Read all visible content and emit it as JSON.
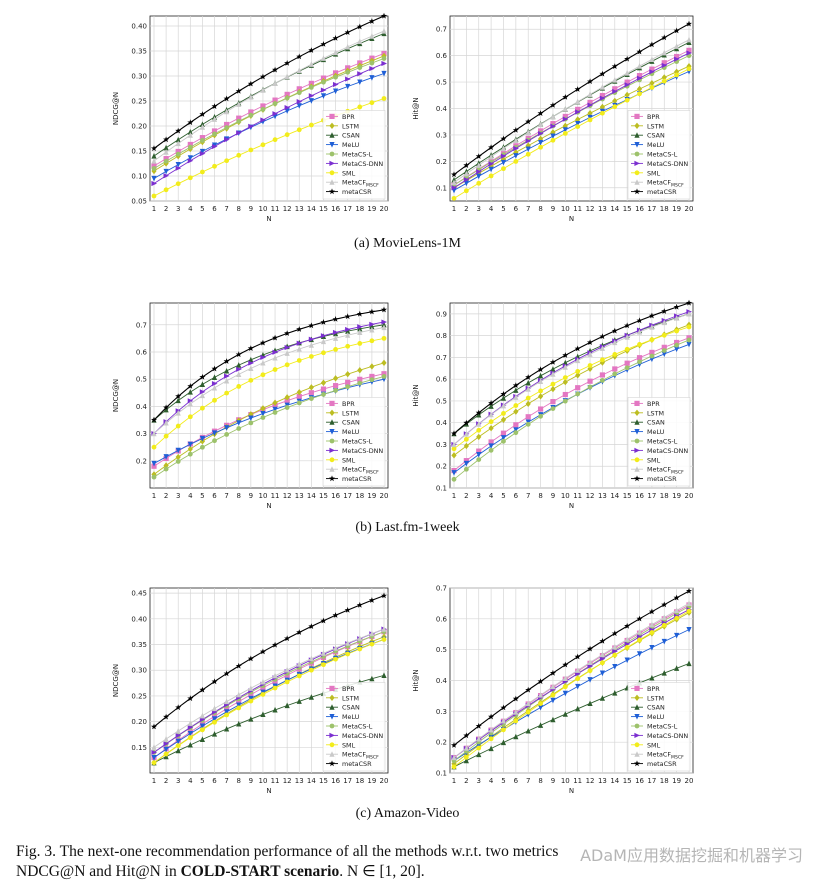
{
  "legend": [
    "BPR",
    "LSTM",
    "CSAN",
    "MeLU",
    "MetaCS-L",
    "MetaCS-DNN",
    "SML",
    "MetaCF_MSCF",
    "metaCSR"
  ],
  "legend_text": {
    "metacf_base": "MetaCF",
    "metacf_sub": "MSCF"
  },
  "colors": [
    "#e377c2",
    "#bcbd22",
    "#2e5e2e",
    "#1f5fd6",
    "#9dc26b",
    "#7b2fd0",
    "#f2ec1b",
    "#c9c9c9",
    "#000000"
  ],
  "markers": [
    "square",
    "diamond",
    "triangle-up",
    "triangle-down",
    "dot",
    "triangle-right",
    "dot",
    "triangle-up",
    "star"
  ],
  "subcaptions": {
    "a": "(a)  MovieLens-1M",
    "b": "(b)  Last.fm-1week",
    "c": "(c)  Amazon-Video"
  },
  "caption": {
    "l1a": "Fig. 3. The next-one recommendation performance of all the methods w.r.t. two metrics",
    "l2a": "NDCG@N and Hit@N in ",
    "l2b": "COLD-START scenario",
    ". ": "",
    "l2c": ". N ∈ [1, 20]."
  },
  "watermark": "ADaM应用数据挖掘和机器学习",
  "chart_data": [
    {
      "id": "ml-ndcg",
      "type": "line",
      "title": "",
      "xlabel": "N",
      "ylabel": "NDCG@N",
      "x": [
        1,
        20
      ],
      "xlim": [
        1,
        20
      ],
      "ylim": [
        0.05,
        0.42
      ],
      "yticks": [
        0.05,
        0.1,
        0.15,
        0.2,
        0.25,
        0.3,
        0.35,
        0.4
      ],
      "series": [
        {
          "name": "BPR",
          "start": 0.12,
          "end": 0.345,
          "k": 0.15
        },
        {
          "name": "LSTM",
          "start": 0.11,
          "end": 0.34,
          "k": 0.15
        },
        {
          "name": "CSAN",
          "start": 0.14,
          "end": 0.385,
          "k": 0.17
        },
        {
          "name": "MeLU",
          "start": 0.095,
          "end": 0.305,
          "k": 0.17
        },
        {
          "name": "MetaCS-L",
          "start": 0.115,
          "end": 0.335,
          "k": 0.16
        },
        {
          "name": "MetaCS-DNN",
          "start": 0.085,
          "end": 0.325,
          "k": 0.14
        },
        {
          "name": "SML",
          "start": 0.06,
          "end": 0.255,
          "k": 0.13
        },
        {
          "name": "MetaCF_MSCF",
          "start": 0.13,
          "end": 0.39,
          "k": 0.18
        },
        {
          "name": "metaCSR",
          "start": 0.155,
          "end": 0.42,
          "k": 0.17
        }
      ]
    },
    {
      "id": "ml-hit",
      "type": "line",
      "title": "",
      "xlabel": "N",
      "ylabel": "Hit@N",
      "xlim": [
        1,
        20
      ],
      "ylim": [
        0.05,
        0.75
      ],
      "yticks": [
        0.1,
        0.2,
        0.3,
        0.4,
        0.5,
        0.6,
        0.7
      ],
      "series": [
        {
          "name": "BPR",
          "start": 0.11,
          "end": 0.62,
          "k": 0.09
        },
        {
          "name": "LSTM",
          "start": 0.1,
          "end": 0.56,
          "k": 0.09
        },
        {
          "name": "CSAN",
          "start": 0.13,
          "end": 0.65,
          "k": 0.1
        },
        {
          "name": "MeLU",
          "start": 0.09,
          "end": 0.54,
          "k": 0.09
        },
        {
          "name": "MetaCS-L",
          "start": 0.11,
          "end": 0.6,
          "k": 0.09
        },
        {
          "name": "MetaCS-DNN",
          "start": 0.1,
          "end": 0.61,
          "k": 0.09
        },
        {
          "name": "SML",
          "start": 0.06,
          "end": 0.55,
          "k": 0.07
        },
        {
          "name": "MetaCF_MSCF",
          "start": 0.12,
          "end": 0.66,
          "k": 0.1
        },
        {
          "name": "metaCSR",
          "start": 0.15,
          "end": 0.72,
          "k": 0.1
        }
      ]
    },
    {
      "id": "lf-ndcg",
      "type": "line",
      "title": "",
      "xlabel": "N",
      "ylabel": "NDCG@N",
      "xlim": [
        1,
        20
      ],
      "ylim": [
        0.1,
        0.78
      ],
      "yticks": [
        0.2,
        0.3,
        0.4,
        0.5,
        0.6,
        0.7
      ],
      "series": [
        {
          "name": "BPR",
          "start": 0.18,
          "end": 0.52,
          "k": 0.35
        },
        {
          "name": "LSTM",
          "start": 0.15,
          "end": 0.56,
          "k": 0.3
        },
        {
          "name": "CSAN",
          "start": 0.35,
          "end": 0.7,
          "k": 0.55
        },
        {
          "name": "MeLU",
          "start": 0.19,
          "end": 0.5,
          "k": 0.3
        },
        {
          "name": "MetaCS-L",
          "start": 0.14,
          "end": 0.51,
          "k": 0.3
        },
        {
          "name": "MetaCS-DNN",
          "start": 0.3,
          "end": 0.71,
          "k": 0.55
        },
        {
          "name": "SML",
          "start": 0.25,
          "end": 0.65,
          "k": 0.5
        },
        {
          "name": "MetaCF_MSCF",
          "start": 0.3,
          "end": 0.69,
          "k": 0.5
        },
        {
          "name": "metaCSR",
          "start": 0.35,
          "end": 0.755,
          "k": 0.6
        }
      ]
    },
    {
      "id": "lf-hit",
      "type": "line",
      "title": "",
      "xlabel": "N",
      "ylabel": "Hit@N",
      "xlim": [
        1,
        20
      ],
      "ylim": [
        0.1,
        0.95
      ],
      "yticks": [
        0.1,
        0.2,
        0.3,
        0.4,
        0.5,
        0.6,
        0.7,
        0.8,
        0.9
      ],
      "series": [
        {
          "name": "BPR",
          "start": 0.18,
          "end": 0.79,
          "k": 0.25
        },
        {
          "name": "LSTM",
          "start": 0.25,
          "end": 0.85,
          "k": 0.22
        },
        {
          "name": "CSAN",
          "start": 0.35,
          "end": 0.9,
          "k": 0.3
        },
        {
          "name": "MeLU",
          "start": 0.17,
          "end": 0.76,
          "k": 0.22
        },
        {
          "name": "MetaCS-L",
          "start": 0.14,
          "end": 0.78,
          "k": 0.22
        },
        {
          "name": "MetaCS-DNN",
          "start": 0.3,
          "end": 0.91,
          "k": 0.3
        },
        {
          "name": "SML",
          "start": 0.28,
          "end": 0.84,
          "k": 0.28
        },
        {
          "name": "MetaCF_MSCF",
          "start": 0.3,
          "end": 0.9,
          "k": 0.3
        },
        {
          "name": "metaCSR",
          "start": 0.35,
          "end": 0.95,
          "k": 0.32
        }
      ]
    },
    {
      "id": "az-ndcg",
      "type": "line",
      "title": "",
      "xlabel": "N",
      "ylabel": "NDCG@N",
      "xlim": [
        1,
        20
      ],
      "ylim": [
        0.1,
        0.46
      ],
      "yticks": [
        0.15,
        0.2,
        0.25,
        0.3,
        0.35,
        0.4,
        0.45
      ],
      "series": [
        {
          "name": "BPR",
          "start": 0.13,
          "end": 0.375,
          "k": 0.2
        },
        {
          "name": "LSTM",
          "start": 0.12,
          "end": 0.365,
          "k": 0.2
        },
        {
          "name": "CSAN",
          "start": 0.12,
          "end": 0.29,
          "k": 0.2
        },
        {
          "name": "MeLU",
          "start": 0.13,
          "end": 0.36,
          "k": 0.2
        },
        {
          "name": "MetaCS-L",
          "start": 0.14,
          "end": 0.375,
          "k": 0.2
        },
        {
          "name": "MetaCS-DNN",
          "start": 0.14,
          "end": 0.38,
          "k": 0.2
        },
        {
          "name": "SML",
          "start": 0.12,
          "end": 0.36,
          "k": 0.2
        },
        {
          "name": "MetaCF_MSCF",
          "start": 0.15,
          "end": 0.38,
          "k": 0.2
        },
        {
          "name": "metaCSR",
          "start": 0.19,
          "end": 0.445,
          "k": 0.25
        }
      ]
    },
    {
      "id": "az-hit",
      "type": "line",
      "title": "",
      "xlabel": "N",
      "ylabel": "Hit@N",
      "xlim": [
        1,
        20
      ],
      "ylim": [
        0.1,
        0.7
      ],
      "yticks": [
        0.1,
        0.2,
        0.3,
        0.4,
        0.5,
        0.6,
        0.7
      ],
      "series": [
        {
          "name": "BPR",
          "start": 0.15,
          "end": 0.645,
          "k": 0.1
        },
        {
          "name": "LSTM",
          "start": 0.13,
          "end": 0.62,
          "k": 0.1
        },
        {
          "name": "CSAN",
          "start": 0.12,
          "end": 0.455,
          "k": 0.09
        },
        {
          "name": "MeLU",
          "start": 0.14,
          "end": 0.565,
          "k": 0.1
        },
        {
          "name": "MetaCS-L",
          "start": 0.14,
          "end": 0.64,
          "k": 0.1
        },
        {
          "name": "MetaCS-DNN",
          "start": 0.15,
          "end": 0.63,
          "k": 0.1
        },
        {
          "name": "SML",
          "start": 0.12,
          "end": 0.625,
          "k": 0.1
        },
        {
          "name": "MetaCF_MSCF",
          "start": 0.15,
          "end": 0.65,
          "k": 0.1
        },
        {
          "name": "metaCSR",
          "start": 0.19,
          "end": 0.69,
          "k": 0.12
        }
      ]
    }
  ]
}
